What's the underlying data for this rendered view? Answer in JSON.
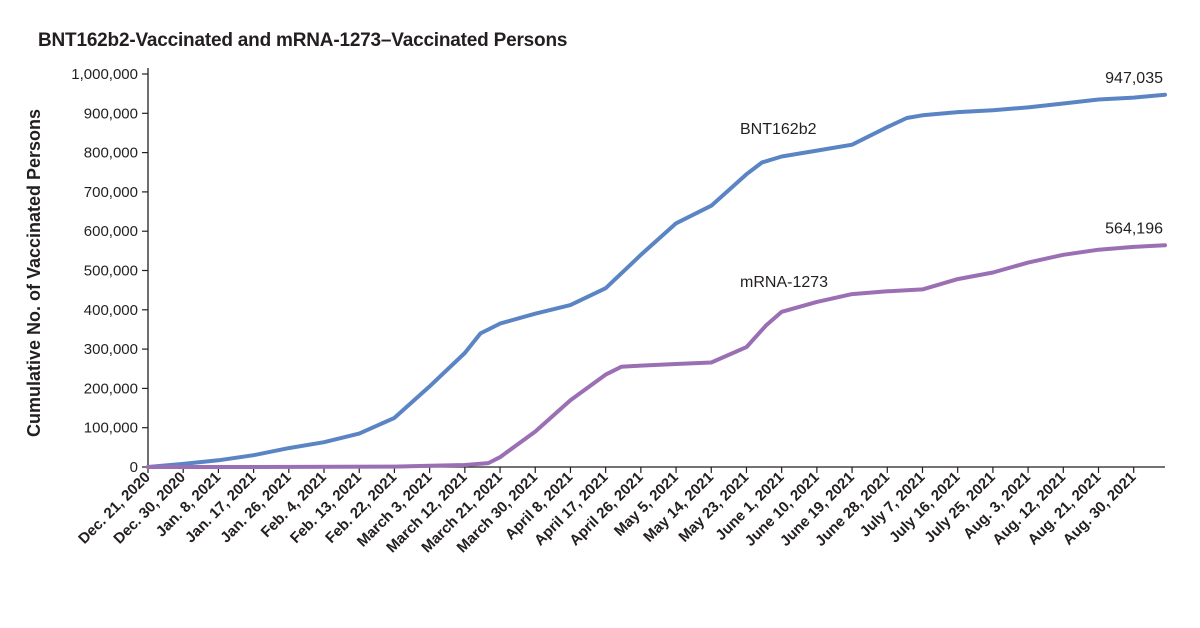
{
  "chart_data": {
    "type": "line",
    "title": "BNT162b2-Vaccinated and mRNA-1273–Vaccinated Persons",
    "xlabel": "",
    "ylabel": "Cumulative No. of Vaccinated Persons",
    "ylim": [
      0,
      1000000
    ],
    "yticks": [
      {
        "value": 0,
        "label": "0"
      },
      {
        "value": 100000,
        "label": "100,000"
      },
      {
        "value": 200000,
        "label": "200,000"
      },
      {
        "value": 300000,
        "label": "300,000"
      },
      {
        "value": 400000,
        "label": "400,000"
      },
      {
        "value": 500000,
        "label": "500,000"
      },
      {
        "value": 600000,
        "label": "600,000"
      },
      {
        "value": 700000,
        "label": "700,000"
      },
      {
        "value": 800000,
        "label": "800,000"
      },
      {
        "value": 900000,
        "label": "900,000"
      },
      {
        "value": 1000000,
        "label": "1,000,000"
      }
    ],
    "xlim": [
      "2020-12-21",
      "2021-09-07"
    ],
    "x_tick_dates": [
      "2020-12-21",
      "2020-12-30",
      "2021-01-08",
      "2021-01-17",
      "2021-01-26",
      "2021-02-04",
      "2021-02-13",
      "2021-02-22",
      "2021-03-03",
      "2021-03-12",
      "2021-03-21",
      "2021-03-30",
      "2021-04-08",
      "2021-04-17",
      "2021-04-26",
      "2021-05-05",
      "2021-05-14",
      "2021-05-23",
      "2021-06-01",
      "2021-06-10",
      "2021-06-19",
      "2021-06-28",
      "2021-07-07",
      "2021-07-16",
      "2021-07-25",
      "2021-08-03",
      "2021-08-12",
      "2021-08-21",
      "2021-08-30"
    ],
    "x_tick_labels": [
      "Dec. 21, 2020",
      "Dec. 30, 2020",
      "Jan. 8, 2021",
      "Jan. 17, 2021",
      "Jan. 26, 2021",
      "Feb. 4, 2021",
      "Feb. 13, 2021",
      "Feb. 22, 2021",
      "March 3, 2021",
      "March 12, 2021",
      "March 21, 2021",
      "March 30, 2021",
      "April 8, 2021",
      "April 17, 2021",
      "April 26, 2021",
      "May 5, 2021",
      "May 14, 2021",
      "May 23, 2021",
      "June 1, 2021",
      "June 10, 2021",
      "June 19, 2021",
      "June 28, 2021",
      "July 7, 2021",
      "July 16, 2021",
      "July 25, 2021",
      "Aug. 3, 2021",
      "Aug. 12, 2021",
      "Aug. 21, 2021",
      "Aug. 30, 2021"
    ],
    "grid": false,
    "series": [
      {
        "name": "BNT162b2",
        "color": "#5b84c4",
        "end_label": "947,035",
        "points": [
          [
            "2020-12-21",
            0
          ],
          [
            "2020-12-30",
            8000
          ],
          [
            "2021-01-08",
            17000
          ],
          [
            "2021-01-17",
            30000
          ],
          [
            "2021-01-26",
            48000
          ],
          [
            "2021-02-04",
            63000
          ],
          [
            "2021-02-13",
            85000
          ],
          [
            "2021-02-22",
            125000
          ],
          [
            "2021-03-03",
            205000
          ],
          [
            "2021-03-12",
            290000
          ],
          [
            "2021-03-16",
            340000
          ],
          [
            "2021-03-21",
            365000
          ],
          [
            "2021-03-30",
            390000
          ],
          [
            "2021-04-08",
            412000
          ],
          [
            "2021-04-17",
            455000
          ],
          [
            "2021-04-26",
            540000
          ],
          [
            "2021-05-05",
            620000
          ],
          [
            "2021-05-14",
            665000
          ],
          [
            "2021-05-23",
            745000
          ],
          [
            "2021-05-27",
            775000
          ],
          [
            "2021-06-01",
            790000
          ],
          [
            "2021-06-10",
            805000
          ],
          [
            "2021-06-19",
            820000
          ],
          [
            "2021-06-28",
            865000
          ],
          [
            "2021-07-03",
            888000
          ],
          [
            "2021-07-07",
            895000
          ],
          [
            "2021-07-16",
            903000
          ],
          [
            "2021-07-25",
            908000
          ],
          [
            "2021-08-03",
            915000
          ],
          [
            "2021-08-12",
            925000
          ],
          [
            "2021-08-21",
            935000
          ],
          [
            "2021-08-30",
            940000
          ],
          [
            "2021-09-07",
            947035
          ]
        ]
      },
      {
        "name": "mRNA-1273",
        "color": "#9b6fb3",
        "end_label": "564,196",
        "points": [
          [
            "2020-12-21",
            0
          ],
          [
            "2021-01-17",
            0
          ],
          [
            "2021-02-22",
            1000
          ],
          [
            "2021-03-03",
            3000
          ],
          [
            "2021-03-12",
            5000
          ],
          [
            "2021-03-18",
            10000
          ],
          [
            "2021-03-21",
            25000
          ],
          [
            "2021-03-30",
            90000
          ],
          [
            "2021-04-08",
            170000
          ],
          [
            "2021-04-17",
            235000
          ],
          [
            "2021-04-21",
            255000
          ],
          [
            "2021-04-26",
            258000
          ],
          [
            "2021-05-05",
            262000
          ],
          [
            "2021-05-14",
            266000
          ],
          [
            "2021-05-23",
            305000
          ],
          [
            "2021-05-28",
            360000
          ],
          [
            "2021-06-01",
            395000
          ],
          [
            "2021-06-10",
            420000
          ],
          [
            "2021-06-19",
            440000
          ],
          [
            "2021-06-28",
            447000
          ],
          [
            "2021-07-07",
            452000
          ],
          [
            "2021-07-16",
            478000
          ],
          [
            "2021-07-25",
            495000
          ],
          [
            "2021-08-03",
            520000
          ],
          [
            "2021-08-12",
            540000
          ],
          [
            "2021-08-21",
            553000
          ],
          [
            "2021-08-30",
            560000
          ],
          [
            "2021-09-07",
            564196
          ]
        ]
      }
    ]
  }
}
